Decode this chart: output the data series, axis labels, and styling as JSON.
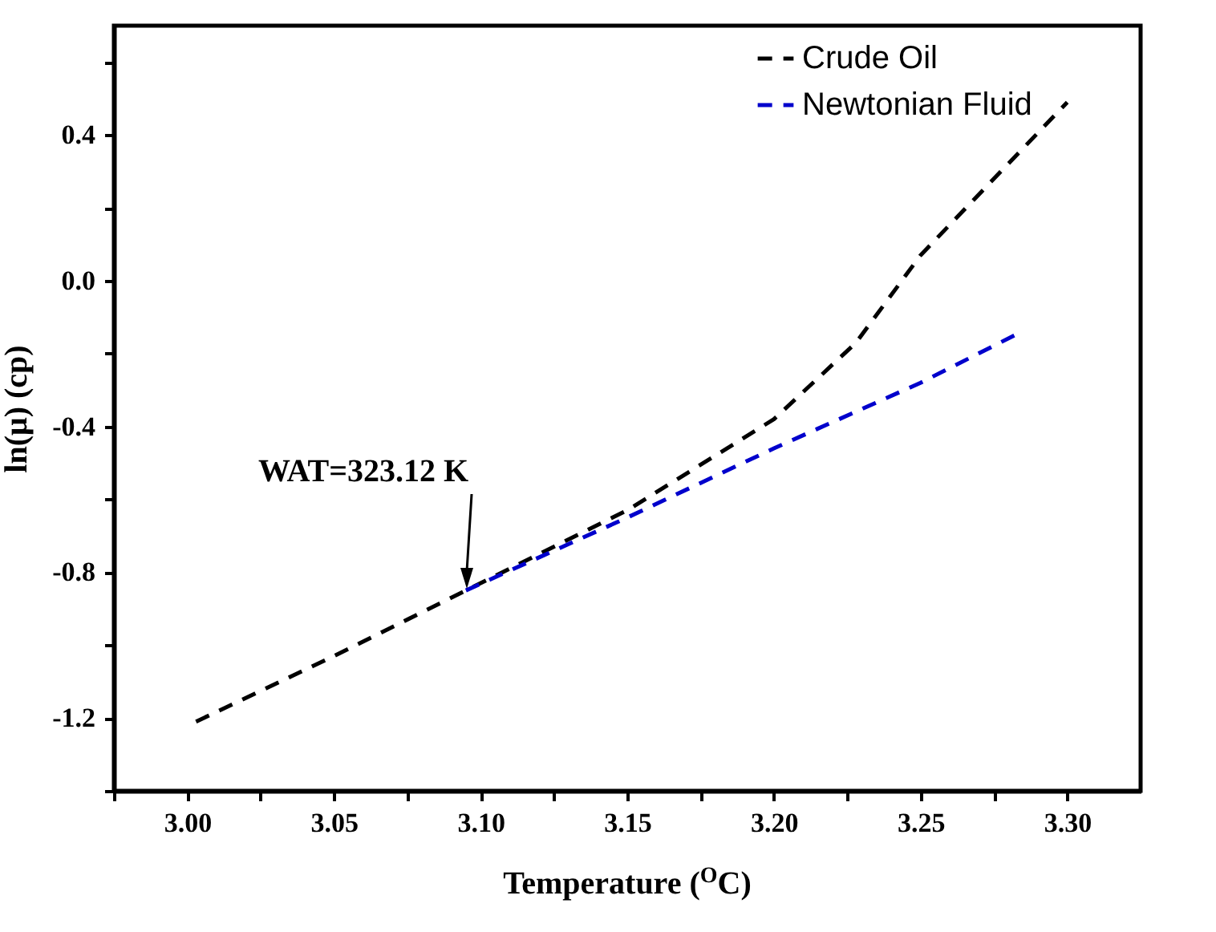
{
  "chart_data": {
    "type": "line",
    "xlabel": "Temperature ($^{O}$C)",
    "ylabel": "ln(μ) (cp)",
    "xlim": [
      2.975,
      3.325
    ],
    "xticks": [
      {
        "value": 2.975,
        "label": null
      },
      {
        "value": 3.0,
        "label": "3.00"
      },
      {
        "value": 3.025,
        "label": null
      },
      3.05,
      {
        "value": 3.075,
        "label": null
      },
      {
        "value": 3.1,
        "label": "3.10"
      },
      {
        "value": 3.125,
        "label": null
      },
      3.15,
      {
        "value": 3.175,
        "label": null
      },
      {
        "value": 3.2,
        "label": "3.20"
      },
      {
        "value": 3.225,
        "label": null
      },
      3.25,
      {
        "value": 3.275,
        "label": null
      },
      {
        "value": 3.3,
        "label": "3.30"
      }
    ],
    "ylim": [
      -1.4,
      0.7
    ],
    "yticks": [
      {
        "value": -1.4,
        "label": null
      },
      -1.2,
      {
        "value": -1.0,
        "label": null
      },
      -0.8,
      {
        "value": -0.6,
        "label": null
      },
      -0.4,
      {
        "value": -0.2,
        "label": null
      },
      {
        "value": 0,
        "label": "0.0"
      },
      {
        "value": 0.2,
        "label": null
      },
      0.4,
      {
        "value": 0.6,
        "label": null
      }
    ],
    "grid": false,
    "legend": "top right",
    "line_style": "dashed",
    "marker": "none",
    "series": [
      {
        "name": "Crude Oil",
        "color": "#000000",
        "x": [
          3.003,
          3.05,
          3.095,
          3.15,
          3.2,
          3.228,
          3.25,
          3.3
        ],
        "values": [
          -1.21,
          -1.03,
          -0.85,
          -0.63,
          -0.38,
          -0.17,
          0.07,
          0.49
        ]
      },
      {
        "name": "Newtonian Fluid",
        "color": "#0000cc",
        "x": [
          3.095,
          3.15,
          3.2,
          3.25,
          3.282
        ],
        "values": [
          -0.85,
          -0.65,
          -0.46,
          -0.28,
          -0.15
        ]
      }
    ],
    "annotations": [
      "WAT=323.12 K"
    ]
  }
}
